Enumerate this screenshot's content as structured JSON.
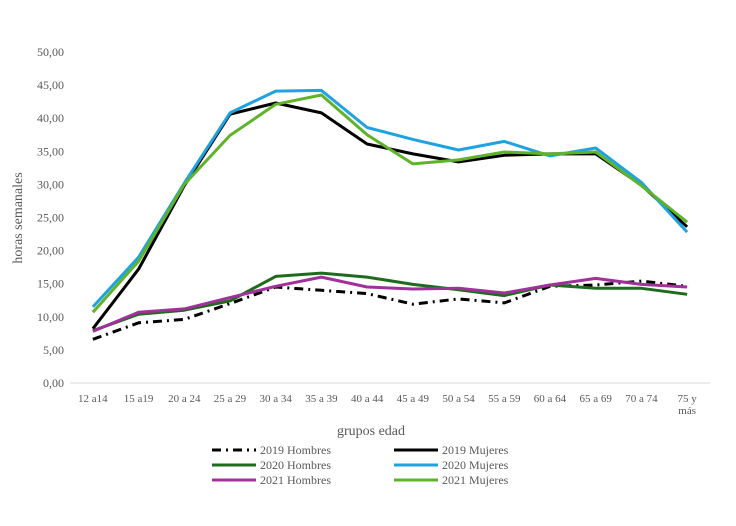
{
  "chart_data": {
    "type": "line",
    "title": "",
    "xlabel": "grupos edad",
    "ylabel": "horas semanales",
    "ylim": [
      0,
      50
    ],
    "yticks": [
      "0,00",
      "5,00",
      "10,00",
      "15,00",
      "20,00",
      "25,00",
      "30,00",
      "35,00",
      "40,00",
      "45,00",
      "50,00"
    ],
    "categories": [
      "12 a14",
      "15 a19",
      "20 a 24",
      "25 a 29",
      "30 a 34",
      "35 a 39",
      "40 a 44",
      "45 a 49",
      "50 a 54",
      "55 a 59",
      "60 a 64",
      "65 a 69",
      "70 a 74",
      "75 y más"
    ],
    "grid": false,
    "legend_position": "bottom",
    "series": [
      {
        "name": "2019 Hombres",
        "color": "#000000",
        "dash": "dashdot",
        "values": [
          6.6,
          9.1,
          9.6,
          12.0,
          14.5,
          14.0,
          13.5,
          11.9,
          12.7,
          12.1,
          14.6,
          14.8,
          15.4,
          14.6
        ]
      },
      {
        "name": "2019 Mujeres",
        "color": "#000000",
        "dash": "solid",
        "values": [
          8.2,
          17.2,
          29.8,
          40.6,
          42.3,
          40.8,
          36.1,
          34.6,
          33.4,
          34.4,
          34.6,
          34.6,
          29.9,
          23.6
        ]
      },
      {
        "name": "2020 Hombres",
        "color": "#1e6b1e",
        "dash": "solid",
        "values": [
          7.9,
          10.4,
          11.0,
          12.4,
          16.1,
          16.6,
          16.0,
          14.9,
          14.1,
          13.2,
          14.8,
          14.3,
          14.3,
          13.4
        ]
      },
      {
        "name": "2020 Mujeres",
        "color": "#1fa3e0",
        "dash": "solid",
        "values": [
          11.5,
          19.0,
          30.2,
          40.8,
          44.1,
          44.2,
          38.6,
          36.8,
          35.2,
          36.5,
          34.3,
          35.5,
          30.3,
          22.8
        ]
      },
      {
        "name": "2021 Hombres",
        "color": "#a0309a",
        "dash": "solid",
        "values": [
          7.8,
          10.7,
          11.2,
          12.9,
          14.6,
          16.0,
          14.5,
          14.2,
          14.3,
          13.6,
          14.8,
          15.8,
          14.9,
          14.5
        ]
      },
      {
        "name": "2021 Mujeres",
        "color": "#5fb32a",
        "dash": "solid",
        "values": [
          10.7,
          18.4,
          30.0,
          37.4,
          42.1,
          43.5,
          37.5,
          33.1,
          33.7,
          34.9,
          34.6,
          34.9,
          29.8,
          24.3
        ]
      }
    ]
  }
}
